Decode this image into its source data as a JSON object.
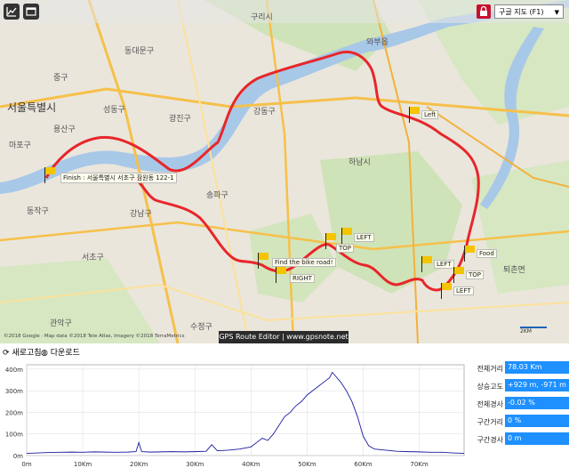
{
  "map": {
    "labels": {
      "seoul": "서울특별시",
      "guri": "구리시",
      "hanam": "하남시",
      "songpa": "송파구",
      "gangnam": "강남구",
      "seocho": "서초구",
      "gwangjin": "광진구",
      "gangdong": "강동구",
      "seongdong": "성동구",
      "dongdaemun": "동대문구",
      "jung": "중구",
      "yongsan": "용산구",
      "mapo": "마포구",
      "dongjak": "동작구",
      "gwanak": "관악구",
      "sujeong": "수정구",
      "toechon": "퇴촌면",
      "wabu": "와부읍"
    },
    "type_selector": "구글 지도 (F1)",
    "flags": {
      "finish": "Finish : 서울특별시 서초구 잠원동 122-1",
      "left1": "Left",
      "left2": "LEFT",
      "top1": "TOP",
      "find": "Find the bike road!",
      "right": "RIGHT",
      "left3": "LEFT",
      "food": "Food",
      "top2": "TOP",
      "left4": "LEFT"
    },
    "attribution": "©2018 Google · Map data ©2018 Tele Atlas, Imagery ©2018 TerraMetrics",
    "banner": "GPS Route Editor | www.gpsnote.net",
    "scale_label": "2KM"
  },
  "toolbar": {
    "refresh": "새로고침",
    "download": "다운로드"
  },
  "chart_data": {
    "type": "line",
    "title": "",
    "xlabel": "",
    "ylabel": "",
    "x_ticks": [
      "0m",
      "10Km",
      "20Km",
      "30Km",
      "40Km",
      "50Km",
      "60Km",
      "70Km"
    ],
    "y_ticks": [
      "0m",
      "100m",
      "200m",
      "300m",
      "400m"
    ],
    "xlim": [
      0,
      78
    ],
    "ylim": [
      0,
      420
    ],
    "series": [
      {
        "x": [
          0,
          2,
          4,
          6,
          8,
          10,
          12,
          14,
          16,
          18,
          19.5,
          20,
          20.5,
          22,
          24,
          26,
          28,
          30,
          32,
          33,
          34,
          36,
          38,
          40,
          41,
          42,
          43,
          44,
          45,
          46,
          47,
          48,
          49,
          50,
          51,
          52,
          53,
          54,
          54.5,
          55,
          56,
          57,
          58,
          59,
          60,
          61,
          62,
          64,
          66,
          68,
          70,
          72,
          74,
          76,
          78
        ],
        "y": [
          10,
          12,
          14,
          15,
          16,
          15,
          17,
          16,
          15,
          16,
          18,
          60,
          18,
          16,
          17,
          18,
          17,
          18,
          20,
          50,
          22,
          25,
          30,
          40,
          60,
          80,
          70,
          100,
          140,
          180,
          200,
          230,
          250,
          280,
          300,
          320,
          340,
          360,
          385,
          370,
          340,
          300,
          250,
          180,
          90,
          45,
          30,
          25,
          20,
          18,
          17,
          15,
          15,
          12,
          10
        ]
      }
    ],
    "line_color": "#1a1aa0"
  },
  "stats": [
    {
      "label": "전체거리",
      "value": "78.03 Km"
    },
    {
      "label": "상승고도",
      "value": "+929 m, -971 m"
    },
    {
      "label": "전체경사",
      "value": "-0.02 %"
    },
    {
      "label": "구간거리",
      "value": "0 %"
    },
    {
      "label": "구간경사",
      "value": "0 m"
    }
  ]
}
